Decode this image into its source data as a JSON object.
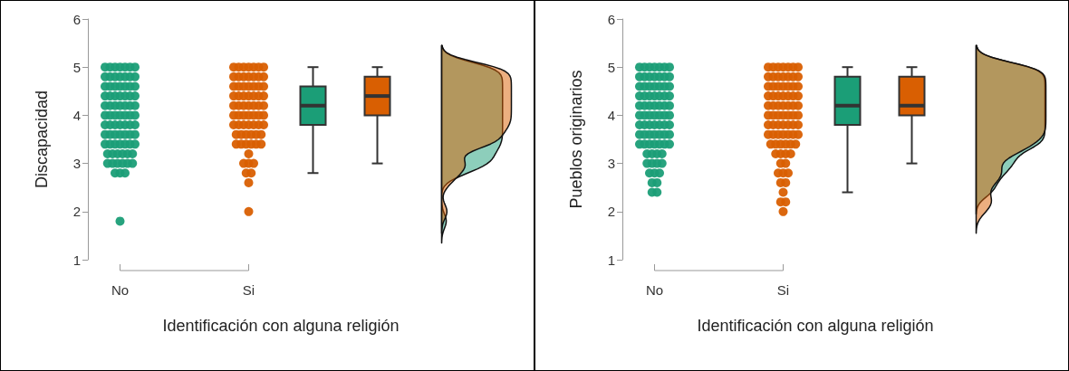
{
  "chart_data": [
    {
      "type": "box",
      "ylabel": "Discapacidad",
      "xlabel": "Identificación con alguna religión",
      "categories": [
        "No",
        null,
        "Si",
        null,
        null,
        null
      ],
      "ylim": [
        1,
        6
      ],
      "yticks": [
        1,
        2,
        3,
        4,
        5,
        6
      ],
      "series": [
        {
          "type": "scatter",
          "color": "#1b9e77",
          "x": [
            "No",
            "No",
            "No",
            "No",
            "No",
            "No",
            "No",
            "No",
            "No",
            "No",
            "No",
            "No",
            "No",
            "No",
            "No",
            "No",
            "No",
            "No",
            "No",
            "No",
            "No",
            "No",
            "No",
            "No",
            "No",
            "No",
            "No",
            "No",
            "No",
            "No",
            "No",
            "No",
            "No",
            "No",
            "No",
            "No",
            "No",
            "No",
            "No",
            "No",
            "No",
            "No",
            "No",
            "No",
            "No",
            "No",
            "No",
            "No",
            "No",
            "No",
            "No",
            "No",
            "No",
            "No",
            "No",
            "No",
            "No",
            "No",
            "No",
            "No",
            "No",
            "No",
            "No",
            "No",
            "No",
            "No",
            "No",
            "No",
            "No",
            "No",
            "No",
            "No",
            "No",
            "No",
            "No",
            "No",
            "No",
            "No",
            "No"
          ],
          "values": [
            5,
            5,
            5,
            5,
            5,
            5,
            5,
            4.8,
            4.8,
            4.8,
            4.8,
            4.8,
            4.8,
            4.8,
            4.6,
            4.6,
            4.6,
            4.6,
            4.6,
            4.6,
            4.6,
            4.4,
            4.4,
            4.4,
            4.4,
            4.4,
            4.4,
            4.4,
            4.2,
            4.2,
            4.2,
            4.2,
            4.2,
            4.2,
            4.2,
            4,
            4,
            4,
            4,
            4,
            4,
            4,
            3.8,
            3.8,
            3.8,
            3.8,
            3.8,
            3.8,
            3.8,
            3.6,
            3.6,
            3.6,
            3.6,
            3.6,
            3.6,
            3.6,
            3.4,
            3.4,
            3.4,
            3.4,
            3.4,
            3.4,
            3.4,
            3.2,
            3.2,
            3.2,
            3.2,
            3.2,
            3.2,
            3,
            3,
            3,
            3,
            3,
            3,
            2.8,
            2.8,
            2.8,
            1.8
          ]
        },
        {
          "type": "scatter",
          "color": "#d95f02",
          "x": [
            "Si",
            "Si",
            "Si",
            "Si",
            "Si",
            "Si",
            "Si",
            "Si",
            "Si",
            "Si",
            "Si",
            "Si",
            "Si",
            "Si",
            "Si",
            "Si",
            "Si",
            "Si",
            "Si",
            "Si",
            "Si",
            "Si",
            "Si",
            "Si",
            "Si",
            "Si",
            "Si",
            "Si",
            "Si",
            "Si",
            "Si",
            "Si",
            "Si",
            "Si",
            "Si",
            "Si",
            "Si",
            "Si",
            "Si",
            "Si",
            "Si",
            "Si",
            "Si",
            "Si",
            "Si",
            "Si",
            "Si",
            "Si",
            "Si",
            "Si",
            "Si",
            "Si",
            "Si",
            "Si",
            "Si",
            "Si",
            "Si",
            "Si",
            "Si",
            "Si",
            "Si",
            "Si",
            "Si",
            "Si",
            "Si",
            "Si",
            "Si",
            "Si",
            "Si"
          ],
          "values": [
            5,
            5,
            5,
            5,
            5,
            5,
            5,
            4.8,
            4.8,
            4.8,
            4.8,
            4.8,
            4.8,
            4.8,
            4.6,
            4.6,
            4.6,
            4.6,
            4.6,
            4.6,
            4.6,
            4.4,
            4.4,
            4.4,
            4.4,
            4.4,
            4.4,
            4.4,
            4.2,
            4.2,
            4.2,
            4.2,
            4.2,
            4.2,
            4.2,
            4,
            4,
            4,
            4,
            4,
            4,
            4,
            3.8,
            3.8,
            3.8,
            3.8,
            3.8,
            3.8,
            3.8,
            3.6,
            3.6,
            3.6,
            3.6,
            3.6,
            3.6,
            3.4,
            3.4,
            3.4,
            3.4,
            3.4,
            3.4,
            3.2,
            3,
            3,
            3,
            2.8,
            2.8,
            2.6,
            2
          ]
        },
        {
          "color": "#1b9e77",
          "boxes": [
            null,
            null,
            null,
            {
              "low": 2.8,
              "q1": 3.8,
              "median": 4.2,
              "q3": 4.6,
              "high": 5
            },
            null,
            null
          ]
        },
        {
          "color": "#d95f02",
          "boxes": [
            null,
            null,
            null,
            null,
            {
              "low": 3,
              "q1": 4,
              "median": 4.4,
              "q3": 4.8,
              "high": 5
            },
            null
          ]
        }
      ]
    },
    {
      "type": "box",
      "ylabel": "Pueblos originarios",
      "xlabel": "Identificación con alguna religión",
      "categories": [
        "No",
        null,
        "Si",
        null,
        null,
        null
      ],
      "ylim": [
        1,
        6
      ],
      "yticks": [
        1,
        2,
        3,
        4,
        5,
        6
      ],
      "series": [
        {
          "type": "scatter",
          "color": "#1b9e77",
          "x": [
            "No",
            "No",
            "No",
            "No",
            "No",
            "No",
            "No",
            "No",
            "No",
            "No",
            "No",
            "No",
            "No",
            "No",
            "No",
            "No",
            "No",
            "No",
            "No",
            "No",
            "No",
            "No",
            "No",
            "No",
            "No",
            "No",
            "No",
            "No",
            "No",
            "No",
            "No",
            "No",
            "No",
            "No",
            "No",
            "No",
            "No",
            "No",
            "No",
            "No",
            "No",
            "No",
            "No",
            "No",
            "No",
            "No",
            "No",
            "No",
            "No",
            "No",
            "No",
            "No",
            "No",
            "No",
            "No",
            "No",
            "No",
            "No",
            "No",
            "No",
            "No",
            "No",
            "No",
            "No",
            "No",
            "No",
            "No",
            "No",
            "No",
            "No",
            "No",
            "No",
            "No",
            "No",
            "No",
            "No",
            "No",
            "No"
          ],
          "values": [
            5,
            5,
            5,
            5,
            5,
            5,
            5,
            4.8,
            4.8,
            4.8,
            4.8,
            4.8,
            4.8,
            4.8,
            4.6,
            4.6,
            4.6,
            4.6,
            4.6,
            4.6,
            4.6,
            4.4,
            4.4,
            4.4,
            4.4,
            4.4,
            4.4,
            4.4,
            4.2,
            4.2,
            4.2,
            4.2,
            4.2,
            4.2,
            4.2,
            4,
            4,
            4,
            4,
            4,
            4,
            4,
            3.8,
            3.8,
            3.8,
            3.8,
            3.8,
            3.8,
            3.8,
            3.6,
            3.6,
            3.6,
            3.6,
            3.6,
            3.6,
            3.6,
            3.4,
            3.4,
            3.4,
            3.4,
            3.4,
            3.4,
            3.4,
            3.2,
            3.2,
            3.2,
            3.2,
            3,
            3,
            3,
            3,
            2.8,
            2.8,
            2.8,
            2.6,
            2.6,
            2.4,
            2.4
          ]
        },
        {
          "type": "scatter",
          "color": "#d95f02",
          "x": [
            "Si",
            "Si",
            "Si",
            "Si",
            "Si",
            "Si",
            "Si",
            "Si",
            "Si",
            "Si",
            "Si",
            "Si",
            "Si",
            "Si",
            "Si",
            "Si",
            "Si",
            "Si",
            "Si",
            "Si",
            "Si",
            "Si",
            "Si",
            "Si",
            "Si",
            "Si",
            "Si",
            "Si",
            "Si",
            "Si",
            "Si",
            "Si",
            "Si",
            "Si",
            "Si",
            "Si",
            "Si",
            "Si",
            "Si",
            "Si",
            "Si",
            "Si",
            "Si",
            "Si",
            "Si",
            "Si",
            "Si",
            "Si",
            "Si",
            "Si",
            "Si",
            "Si",
            "Si",
            "Si",
            "Si",
            "Si",
            "Si",
            "Si",
            "Si",
            "Si",
            "Si",
            "Si",
            "Si",
            "Si",
            "Si",
            "Si",
            "Si",
            "Si",
            "Si",
            "Si",
            "Si",
            "Si",
            "Si",
            "Si",
            "Si",
            "Si",
            "Si"
          ],
          "values": [
            5,
            5,
            5,
            5,
            5,
            5,
            5,
            4.8,
            4.8,
            4.8,
            4.8,
            4.8,
            4.8,
            4.8,
            4.6,
            4.6,
            4.6,
            4.6,
            4.6,
            4.6,
            4.6,
            4.4,
            4.4,
            4.4,
            4.4,
            4.4,
            4.4,
            4.4,
            4.2,
            4.2,
            4.2,
            4.2,
            4.2,
            4.2,
            4.2,
            4,
            4,
            4,
            4,
            4,
            4,
            4,
            3.8,
            3.8,
            3.8,
            3.8,
            3.8,
            3.8,
            3.8,
            3.6,
            3.6,
            3.6,
            3.6,
            3.6,
            3.6,
            3.6,
            3.4,
            3.4,
            3.4,
            3.4,
            3.4,
            3.4,
            3.2,
            3.2,
            3.2,
            3.2,
            3,
            3,
            2.8,
            2.8,
            2.8,
            2.6,
            2.6,
            2.4,
            2.2,
            2.2,
            2
          ]
        },
        {
          "color": "#1b9e77",
          "boxes": [
            null,
            null,
            null,
            {
              "low": 2.4,
              "q1": 3.8,
              "median": 4.2,
              "q3": 4.8,
              "high": 5
            },
            null,
            null
          ]
        },
        {
          "color": "#d95f02",
          "boxes": [
            null,
            null,
            null,
            null,
            {
              "low": 3,
              "q1": 4,
              "median": 4.2,
              "q3": 4.8,
              "high": 5
            },
            null
          ]
        }
      ]
    }
  ]
}
